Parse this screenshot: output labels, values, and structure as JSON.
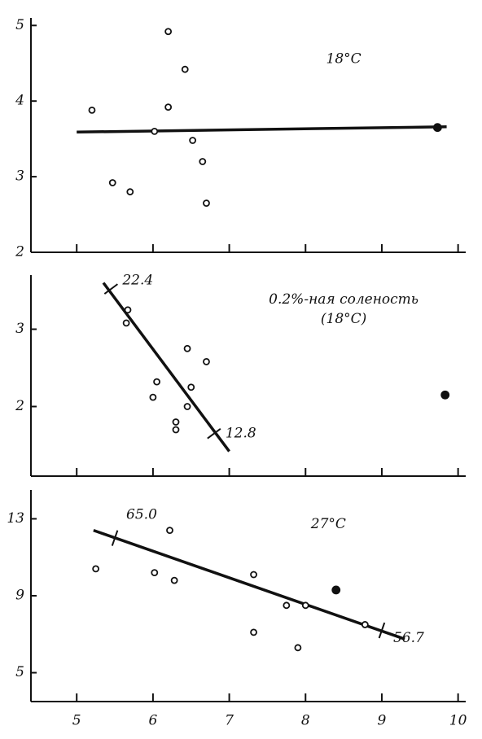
{
  "chart_data": [
    {
      "type": "scatter",
      "annotation": [
        "18°C"
      ],
      "annotation_at": [
        8.5,
        4.55
      ],
      "xlim": [
        4.4,
        10.1
      ],
      "xticks": [
        5,
        6,
        7,
        8,
        9,
        10
      ],
      "show_xtick_labels": false,
      "ylim": [
        2,
        5.1
      ],
      "yticks": [
        2,
        3,
        4,
        5
      ],
      "series": [
        {
          "marker": "open",
          "x": [
            5.2,
            5.47,
            5.7,
            6.02,
            6.2,
            6.2,
            6.42,
            6.52,
            6.65,
            6.7
          ],
          "values": [
            3.88,
            2.92,
            2.8,
            3.6,
            4.92,
            3.92,
            4.42,
            3.48,
            3.2,
            2.65
          ]
        },
        {
          "marker": "filled",
          "x": [
            9.73
          ],
          "values": [
            3.65
          ]
        }
      ],
      "fit_line": {
        "x": [
          5.0,
          9.85
        ],
        "values": [
          3.59,
          3.66
        ]
      },
      "line_marks": []
    },
    {
      "type": "scatter",
      "annotation": [
        "0.2%-ная соленость",
        "(18°C)"
      ],
      "annotation_at": [
        8.5,
        3.38
      ],
      "xlim": [
        4.4,
        10.1
      ],
      "xticks": [
        5,
        6,
        7,
        8,
        9,
        10
      ],
      "show_xtick_labels": false,
      "ylim": [
        1.1,
        3.7
      ],
      "yticks": [
        2,
        3
      ],
      "series": [
        {
          "marker": "open",
          "x": [
            5.67,
            5.65,
            6.05,
            6.0,
            6.3,
            6.3,
            6.45,
            6.45,
            6.5,
            6.7
          ],
          "values": [
            3.25,
            3.08,
            2.32,
            2.12,
            1.8,
            1.7,
            2.75,
            2.0,
            2.25,
            2.58
          ]
        },
        {
          "marker": "filled",
          "x": [
            9.83
          ],
          "values": [
            2.15
          ]
        }
      ],
      "fit_line": {
        "x": [
          5.35,
          7.0
        ],
        "values": [
          3.6,
          1.42
        ]
      },
      "line_marks": [
        {
          "x": 5.45,
          "y": 3.52,
          "label": "22.4"
        },
        {
          "x": 6.8,
          "y": 1.65,
          "label": "12.8"
        }
      ]
    },
    {
      "type": "scatter",
      "annotation": [
        "27°C"
      ],
      "annotation_at": [
        8.3,
        12.7
      ],
      "xlim": [
        4.4,
        10.1
      ],
      "xticks": [
        5,
        6,
        7,
        8,
        9,
        10
      ],
      "show_xtick_labels": true,
      "ylim": [
        3.5,
        14.5
      ],
      "yticks": [
        5,
        9,
        13
      ],
      "series": [
        {
          "marker": "open",
          "x": [
            5.25,
            6.02,
            6.22,
            6.28,
            7.32,
            7.32,
            7.75,
            7.9,
            8.0,
            8.78
          ],
          "values": [
            10.4,
            10.2,
            12.4,
            9.8,
            10.1,
            7.1,
            8.5,
            6.3,
            8.5,
            7.5
          ]
        },
        {
          "marker": "filled",
          "x": [
            8.4
          ],
          "values": [
            9.3
          ]
        }
      ],
      "fit_line": {
        "x": [
          5.22,
          9.3
        ],
        "values": [
          12.4,
          6.75
        ]
      },
      "line_marks": [
        {
          "x": 5.5,
          "y": 12.0,
          "label": "65.0"
        },
        {
          "x": 9.0,
          "y": 7.2,
          "label": "56.7"
        }
      ]
    }
  ]
}
